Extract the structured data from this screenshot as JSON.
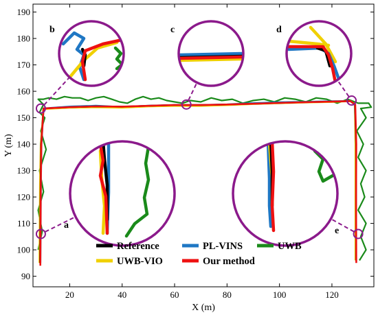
{
  "chart_data": {
    "type": "line",
    "xlabel": "X (m)",
    "ylabel": "Y (m)",
    "xlim": [
      6,
      136
    ],
    "ylim": [
      86,
      193
    ],
    "xticks": [
      20,
      40,
      60,
      80,
      100,
      120
    ],
    "yticks": [
      90,
      100,
      110,
      120,
      130,
      140,
      150,
      160,
      170,
      180,
      190
    ],
    "legend": {
      "placement": "bottom-center",
      "entries": [
        {
          "label": "Reference",
          "color": "#000000"
        },
        {
          "label": "PL-VINS",
          "color": "#1f77c4"
        },
        {
          "label": "UWB",
          "color": "#1a8a1a"
        },
        {
          "label": "UWB-VIO",
          "color": "#f0d000"
        },
        {
          "label": "Our method",
          "color": "#ee1111"
        }
      ]
    },
    "series": [
      {
        "name": "UWB",
        "color": "#1a8a1a",
        "x": [
          8,
          9.5,
          8,
          10,
          8.5,
          11,
          9,
          10.5,
          8.5,
          10,
          9,
          8,
          10,
          12,
          15,
          18,
          21,
          24,
          27,
          30,
          33,
          36,
          39,
          42,
          45,
          48,
          51,
          54,
          57,
          60,
          63,
          66,
          70,
          74,
          78,
          82,
          86,
          90,
          94,
          98,
          102,
          106,
          110,
          114,
          118,
          122,
          126,
          130,
          134,
          135,
          131,
          133,
          129.5,
          132,
          130,
          133,
          131,
          132.5,
          130,
          133,
          131,
          133,
          130.5
        ],
        "y": [
          100,
          107,
          115,
          122,
          130,
          138,
          145,
          150,
          152,
          155,
          156,
          157,
          157,
          157.5,
          157,
          158,
          157.5,
          157.5,
          156.5,
          157.5,
          158,
          157,
          156,
          155.5,
          157,
          158,
          157,
          157.5,
          156.5,
          156,
          155.5,
          156.5,
          156,
          157.5,
          156.5,
          157,
          155.5,
          156.5,
          157,
          156,
          157.5,
          157,
          156,
          157.5,
          157,
          155.5,
          157,
          155.5,
          155.5,
          154,
          153.5,
          150,
          145,
          140,
          135,
          130,
          125,
          120,
          115,
          110,
          105,
          100,
          96
        ]
      },
      {
        "name": "PL-VINS",
        "color": "#1f77c4",
        "x": [
          8.8,
          8.9,
          9,
          9.2,
          10,
          20,
          30,
          40,
          50,
          60,
          70,
          80,
          90,
          100,
          110,
          120,
          127,
          128.8,
          129.2,
          129.1,
          129.1
        ],
        "y": [
          95,
          110,
          125,
          140,
          153.5,
          154.2,
          154.5,
          154,
          154.5,
          154.8,
          154.8,
          155,
          155.5,
          155.8,
          156,
          156.2,
          156.3,
          155,
          140,
          120,
          96
        ]
      },
      {
        "name": "UWB-VIO",
        "color": "#f0d000",
        "x": [
          8.5,
          8.6,
          8.7,
          9,
          10,
          20,
          30,
          40,
          50,
          60,
          70,
          80,
          90,
          100,
          110,
          120,
          127,
          128.8,
          129,
          129,
          129
        ],
        "y": [
          95,
          110,
          125,
          140,
          153.3,
          153.8,
          154,
          153.8,
          154.3,
          154.5,
          154.5,
          154.8,
          155.2,
          155.5,
          155.8,
          156,
          156.3,
          155,
          140,
          120,
          96
        ]
      },
      {
        "name": "Reference",
        "color": "#000000",
        "x": [
          8.7,
          8.8,
          8.9,
          9.1,
          10,
          20,
          30,
          40,
          50,
          60,
          70,
          80,
          90,
          100,
          110,
          120,
          127,
          128.8,
          129.2,
          129.2,
          129.2
        ],
        "y": [
          95,
          110,
          125,
          140,
          153.5,
          154,
          154.3,
          154.2,
          154.5,
          154.8,
          154.8,
          155,
          155.3,
          155.6,
          155.9,
          156.1,
          156.3,
          155,
          140,
          120,
          96
        ]
      },
      {
        "name": "Our method",
        "color": "#ee1111",
        "x": [
          8.8,
          8.9,
          9,
          9.2,
          10,
          20,
          30,
          40,
          50,
          60,
          70,
          80,
          90,
          100,
          110,
          120,
          127,
          128.9,
          129.3,
          129.2,
          129.3
        ],
        "y": [
          94,
          110,
          125,
          140,
          153.5,
          154,
          154.3,
          154.2,
          154.5,
          154.8,
          154.8,
          155,
          155.3,
          155.6,
          155.9,
          156.1,
          156.3,
          155,
          140,
          120,
          95
        ]
      }
    ],
    "zoom_panels": [
      {
        "label": "b",
        "anchor": [
          9,
          153.5
        ]
      },
      {
        "label": "c",
        "anchor": [
          64.5,
          155
        ]
      },
      {
        "label": "d",
        "anchor": [
          127.5,
          156.5
        ]
      },
      {
        "label": "a",
        "anchor": [
          9,
          106
        ]
      },
      {
        "label": "e",
        "anchor": [
          130,
          106
        ]
      }
    ]
  }
}
